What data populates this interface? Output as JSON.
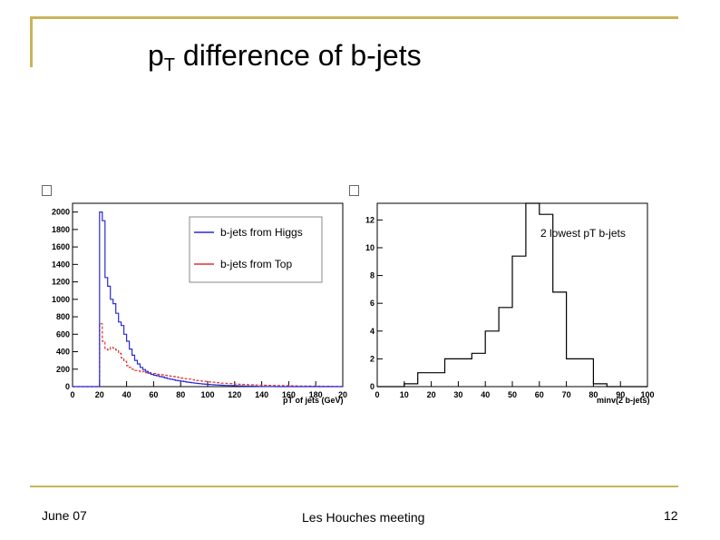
{
  "slide": {
    "title_main": "p",
    "title_sub": "T",
    "title_rest": " difference of b-jets"
  },
  "footer": {
    "left": "June 07",
    "center": "Les Houches meeting",
    "right": "12"
  },
  "colors": {
    "accent": "#c8b45a",
    "higgs": "#2a2ad8",
    "top": "#e03030"
  },
  "chart_data": [
    {
      "type": "line",
      "subtype": "histogram",
      "title": "",
      "xlabel": "pT of jets (GeV)",
      "ylabel": "",
      "xlim": [
        0,
        200
      ],
      "ylim": [
        0,
        2100
      ],
      "xticks": [
        "0",
        "20",
        "40",
        "60",
        "80",
        "100",
        "120",
        "140",
        "160",
        "180",
        "20"
      ],
      "yticks": [
        "0",
        "200",
        "400",
        "600",
        "800",
        "1000",
        "1200",
        "1400",
        "1600",
        "1800",
        "2000"
      ],
      "legend": [
        "b-jets from Higgs",
        "b-jets from Top"
      ],
      "legend_position": "top-right",
      "bin_width": 2,
      "bin_start": 0,
      "series": [
        {
          "name": "b-jets from Higgs",
          "values": [
            0,
            0,
            0,
            0,
            0,
            0,
            0,
            0,
            0,
            0,
            2000,
            1900,
            1250,
            1150,
            1000,
            950,
            840,
            740,
            700,
            600,
            520,
            430,
            360,
            300,
            260,
            220,
            195,
            175,
            155,
            140,
            130,
            125,
            115,
            110,
            100,
            92,
            85,
            80,
            72,
            68,
            62,
            58,
            52,
            48,
            44,
            40,
            36,
            33,
            30,
            27,
            25,
            23,
            21,
            19,
            17,
            16,
            14,
            13,
            12,
            11,
            10,
            9,
            8,
            7,
            6,
            5,
            5,
            4,
            3,
            2,
            2,
            2,
            1,
            1,
            1,
            0,
            0,
            0,
            0,
            0,
            0,
            0,
            0,
            0,
            0,
            0,
            0,
            0,
            0,
            0,
            0,
            0,
            0,
            0,
            0,
            0,
            0,
            0,
            0,
            0
          ]
        },
        {
          "name": "b-jets from Top",
          "values": [
            0,
            0,
            0,
            0,
            0,
            0,
            0,
            0,
            0,
            0,
            720,
            520,
            430,
            420,
            450,
            440,
            420,
            380,
            330,
            290,
            240,
            220,
            200,
            185,
            180,
            170,
            175,
            160,
            160,
            150,
            150,
            140,
            140,
            135,
            130,
            125,
            120,
            115,
            110,
            105,
            98,
            92,
            90,
            86,
            80,
            75,
            70,
            66,
            62,
            60,
            55,
            52,
            50,
            46,
            44,
            40,
            38,
            36,
            34,
            32,
            30,
            28,
            27,
            25,
            24,
            22,
            21,
            20,
            19,
            18,
            17,
            16,
            15,
            14,
            13,
            12,
            12,
            11,
            10,
            10,
            9,
            9,
            8,
            8,
            7,
            7,
            6,
            6,
            6,
            5,
            5,
            5,
            4,
            4,
            4,
            3,
            3,
            3,
            3,
            2
          ]
        }
      ]
    },
    {
      "type": "line",
      "subtype": "histogram",
      "title": "2 lowest pT b-jets",
      "xlabel": "minv(2 b-jets)",
      "ylabel": "",
      "xlim": [
        0,
        100
      ],
      "ylim": [
        0,
        13.2
      ],
      "xticks": [
        "0",
        "10",
        "20",
        "30",
        "40",
        "50",
        "60",
        "70",
        "80",
        "90",
        "100"
      ],
      "yticks": [
        "0",
        "2",
        "4",
        "6",
        "8",
        "10",
        "12"
      ],
      "bin_width": 5,
      "bin_start": 0,
      "series": [
        {
          "name": "minv",
          "values": [
            0,
            0,
            0.2,
            1,
            1,
            2,
            2,
            2.4,
            4,
            5.7,
            9.4,
            13.2,
            12.4,
            6.8,
            2,
            2,
            0.2,
            0,
            0,
            0
          ]
        }
      ]
    }
  ]
}
